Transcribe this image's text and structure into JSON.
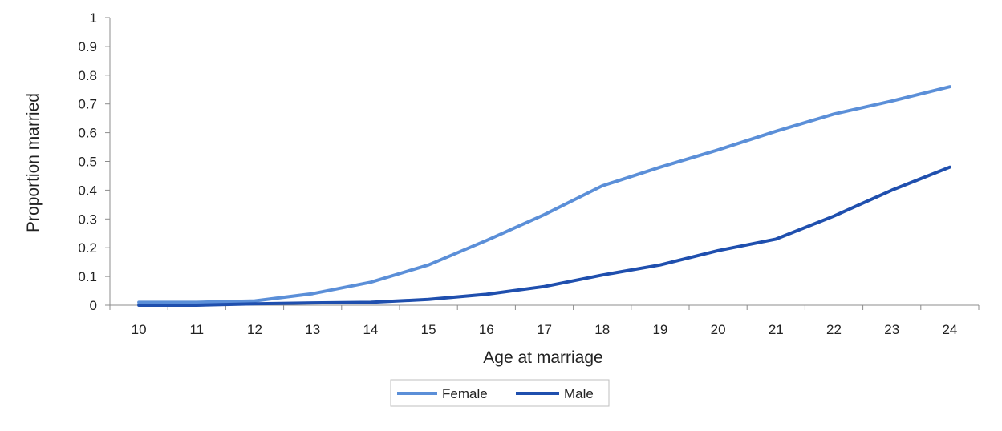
{
  "chart_data": {
    "type": "line",
    "xlabel": "Age at marriage",
    "ylabel": "Proportion married",
    "x": [
      10,
      11,
      12,
      13,
      14,
      15,
      16,
      17,
      18,
      19,
      20,
      21,
      22,
      23,
      24
    ],
    "xlim": [
      10,
      24
    ],
    "ylim": [
      0,
      1
    ],
    "yticks": [
      0,
      0.1,
      0.2,
      0.3,
      0.4,
      0.5,
      0.6,
      0.7,
      0.8,
      0.9,
      1
    ],
    "ytick_labels": [
      "0",
      "0.1",
      "0.2",
      "0.3",
      "0.4",
      "0.5",
      "0.6",
      "0.7",
      "0.8",
      "0.9",
      "1"
    ],
    "xtick_labels": [
      "10",
      "11",
      "12",
      "13",
      "14",
      "15",
      "16",
      "17",
      "18",
      "19",
      "20",
      "21",
      "22",
      "23",
      "24"
    ],
    "grid": false,
    "legend": "bottom-center",
    "series": [
      {
        "name": "Female",
        "color": "#5b8fd8",
        "values": [
          0.01,
          0.01,
          0.015,
          0.04,
          0.08,
          0.14,
          0.225,
          0.315,
          0.415,
          0.48,
          0.54,
          0.605,
          0.665,
          0.71,
          0.76
        ]
      },
      {
        "name": "Male",
        "color": "#1f4fae",
        "values": [
          0.0,
          0.0,
          0.005,
          0.008,
          0.01,
          0.02,
          0.038,
          0.065,
          0.105,
          0.14,
          0.19,
          0.23,
          0.31,
          0.4,
          0.48
        ]
      }
    ]
  }
}
